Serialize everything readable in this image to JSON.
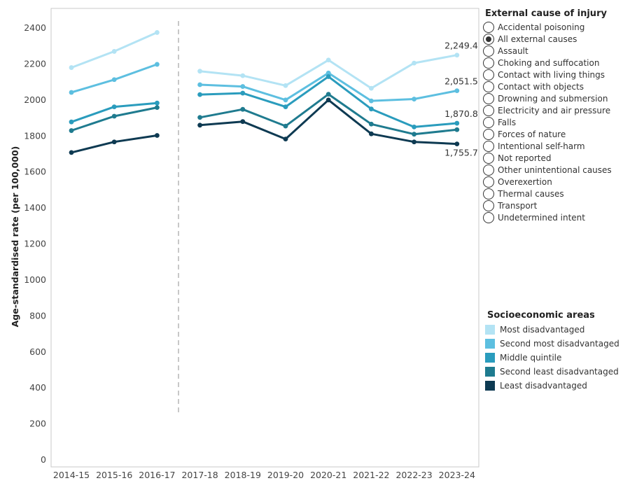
{
  "colors": {
    "most_disadvantaged": "#b3e3f4",
    "second_most_disadvantaged": "#5dbfe0",
    "middle_quintile": "#2a9cbd",
    "second_least_disadvantaged": "#1f7b8f",
    "least_disadvantaged": "#0e3a52"
  },
  "filter": {
    "title": "External cause of injury",
    "selected_index": 1,
    "options": [
      "Accidental poisoning",
      "All external causes",
      "Assault",
      "Choking and suffocation",
      "Contact with living things",
      "Contact with objects",
      "Drowning and submersion",
      "Electricity and air pressure",
      "Falls",
      "Forces of nature",
      "Intentional self-harm",
      "Not reported",
      "Other unintentional causes",
      "Overexertion",
      "Thermal causes",
      "Transport",
      "Undetermined intent"
    ]
  },
  "legend": {
    "title": "Socioeconomic areas"
  },
  "chart_data": {
    "type": "line",
    "ylabel": "Age-standardised rate (per 100,000)",
    "xlabel": "",
    "ylim": [
      0,
      2400
    ],
    "yticks": [
      0,
      200,
      400,
      600,
      800,
      1000,
      1200,
      1400,
      1600,
      1800,
      2000,
      2200,
      2400
    ],
    "categories": [
      "2014-15",
      "2015-16",
      "2016-17",
      "2017-18",
      "2018-19",
      "2019-20",
      "2020-21",
      "2021-22",
      "2022-23",
      "2023-24"
    ],
    "series_break_after": "2016-17",
    "grid": false,
    "legend_position": "right",
    "series": [
      {
        "name": "Most disadvantaged",
        "color_key": "most_disadvantaged",
        "values": [
          2180,
          2270,
          2375,
          2160,
          2135,
          2080,
          2222,
          2065,
          2205,
          2249.4
        ]
      },
      {
        "name": "Second most disadvantaged",
        "color_key": "second_most_disadvantaged",
        "values": [
          2042,
          2113,
          2198,
          2085,
          2075,
          2000,
          2150,
          1995,
          2005,
          2051.5
        ]
      },
      {
        "name": "Middle quintile",
        "color_key": "middle_quintile",
        "values": [
          1878,
          1962,
          1983,
          2030,
          2038,
          1962,
          2130,
          1950,
          1850,
          1870.8
        ]
      },
      {
        "name": "Second least disadvantaged",
        "color_key": "second_least_disadvantaged",
        "values": [
          1830,
          1910,
          1958,
          1903,
          1948,
          1855,
          2032,
          1866,
          1810,
          1835
        ]
      },
      {
        "name": "Least disadvantaged",
        "color_key": "least_disadvantaged",
        "values": [
          1708,
          1767,
          1803,
          1860,
          1880,
          1783,
          2000,
          1812,
          1767,
          1755.7
        ]
      }
    ],
    "end_labels": [
      {
        "series_index": 0,
        "text": "2,249.4"
      },
      {
        "series_index": 1,
        "text": "2,051.5"
      },
      {
        "series_index": 2,
        "text": "1,870.8"
      },
      {
        "series_index": 4,
        "text": "1,755.7"
      }
    ]
  }
}
